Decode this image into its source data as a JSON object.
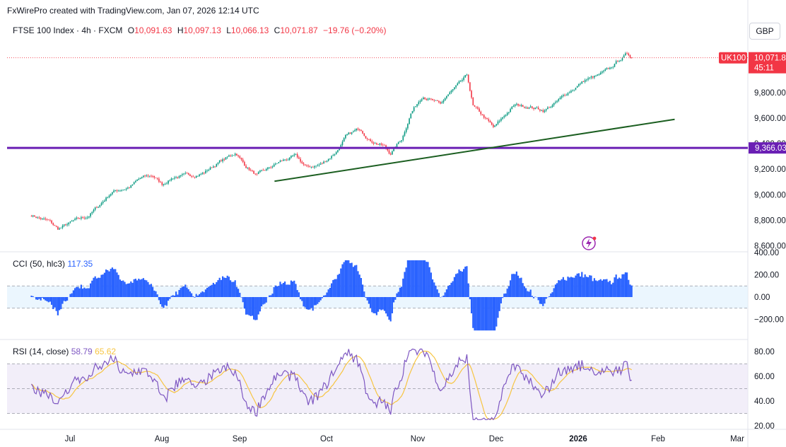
{
  "header": {
    "credit": "FxWirePro created with TradingView.com, Jan 07, 2026 12:14 UTC",
    "symbol": "FTSE 100 Index · 4h · FXCM",
    "open_label": "O",
    "open": "10,091.63",
    "high_label": "H",
    "high": "10,097.13",
    "low_label": "L",
    "low": "10,066.13",
    "close_label": "C",
    "close": "10,071.87",
    "change": "−19.76 (−0.20%)",
    "currency": "GBP"
  },
  "colors": {
    "up": "#089981",
    "down": "#f23645",
    "support_line": "#1b5e20",
    "horizontal_line": "#6a1fb4",
    "cci_fill": "#2962ff",
    "rsi_line": "#7e57c2",
    "rsi_ma": "#f7c542",
    "price_tag": "#f23645"
  },
  "chart_data": [
    {
      "type": "candlestick",
      "title": "FTSE 100 Index · 4h · FXCM",
      "x_ticks": [
        "Jul",
        "Aug",
        "Sep",
        "Oct",
        "Nov",
        "Dec",
        "2026",
        "Feb",
        "Mar"
      ],
      "y_ticks": [
        "8,600.00",
        "8,800.00",
        "9,000.00",
        "9,200.00",
        "9,400.00",
        "9,600.00",
        "9,800.00"
      ],
      "ylim": [
        8560,
        10180
      ],
      "close_path": [
        [
          "2025-06-18",
          8840
        ],
        [
          "2025-06-24",
          8790
        ],
        [
          "2025-06-27",
          8730
        ],
        [
          "2025-07-02",
          8790
        ],
        [
          "2025-07-07",
          8830
        ],
        [
          "2025-07-11",
          8920
        ],
        [
          "2025-07-15",
          9020
        ],
        [
          "2025-07-21",
          9060
        ],
        [
          "2025-07-25",
          9130
        ],
        [
          "2025-07-29",
          9150
        ],
        [
          "2025-08-01",
          9080
        ],
        [
          "2025-08-05",
          9140
        ],
        [
          "2025-08-11",
          9150
        ],
        [
          "2025-08-15",
          9170
        ],
        [
          "2025-08-20",
          9250
        ],
        [
          "2025-08-26",
          9330
        ],
        [
          "2025-08-29",
          9230
        ],
        [
          "2025-09-02",
          9150
        ],
        [
          "2025-09-05",
          9190
        ],
        [
          "2025-09-10",
          9260
        ],
        [
          "2025-09-15",
          9300
        ],
        [
          "2025-09-19",
          9210
        ],
        [
          "2025-09-24",
          9240
        ],
        [
          "2025-09-29",
          9340
        ],
        [
          "2025-10-02",
          9450
        ],
        [
          "2025-10-07",
          9520
        ],
        [
          "2025-10-10",
          9430
        ],
        [
          "2025-10-15",
          9380
        ],
        [
          "2025-10-17",
          9320
        ],
        [
          "2025-10-21",
          9440
        ],
        [
          "2025-10-24",
          9640
        ],
        [
          "2025-10-28",
          9780
        ],
        [
          "2025-11-03",
          9700
        ],
        [
          "2025-11-05",
          9770
        ],
        [
          "2025-11-10",
          9880
        ],
        [
          "2025-11-12",
          9930
        ],
        [
          "2025-11-14",
          9690
        ],
        [
          "2025-11-18",
          9600
        ],
        [
          "2025-11-21",
          9520
        ],
        [
          "2025-11-25",
          9630
        ],
        [
          "2025-11-28",
          9700
        ],
        [
          "2025-12-03",
          9690
        ],
        [
          "2025-12-08",
          9660
        ],
        [
          "2025-12-12",
          9720
        ],
        [
          "2025-12-16",
          9800
        ],
        [
          "2025-12-22",
          9900
        ],
        [
          "2025-12-26",
          9930
        ],
        [
          "2025-12-30",
          9980
        ],
        [
          "2026-01-02",
          10050
        ],
        [
          "2026-01-05",
          10100
        ],
        [
          "2026-01-07",
          10072
        ]
      ],
      "last_price_label": "UK100",
      "last_price": "10,071.8",
      "countdown": "45:11",
      "horizontal_level": 9366,
      "horizontal_level_label": "9,366.03",
      "trendline": [
        [
          "2025-09-08",
          9105
        ],
        [
          "2026-01-21",
          9590
        ]
      ]
    },
    {
      "type": "histogram",
      "title": "CCI (50, hlc3)",
      "value": "117.35",
      "y_ticks": [
        "400.00",
        "200.00",
        "0.00",
        "−200.00"
      ],
      "bands": [
        100,
        -100
      ],
      "ylim": [
        -300,
        420
      ]
    },
    {
      "type": "line",
      "title": "RSI (14, close)",
      "values": {
        "rsi": "58.79",
        "ma": "65.62"
      },
      "y_ticks": [
        "80.00",
        "60.00",
        "40.00",
        "20.00"
      ],
      "bands": [
        70,
        50,
        30
      ],
      "ylim": [
        20,
        80
      ]
    }
  ]
}
